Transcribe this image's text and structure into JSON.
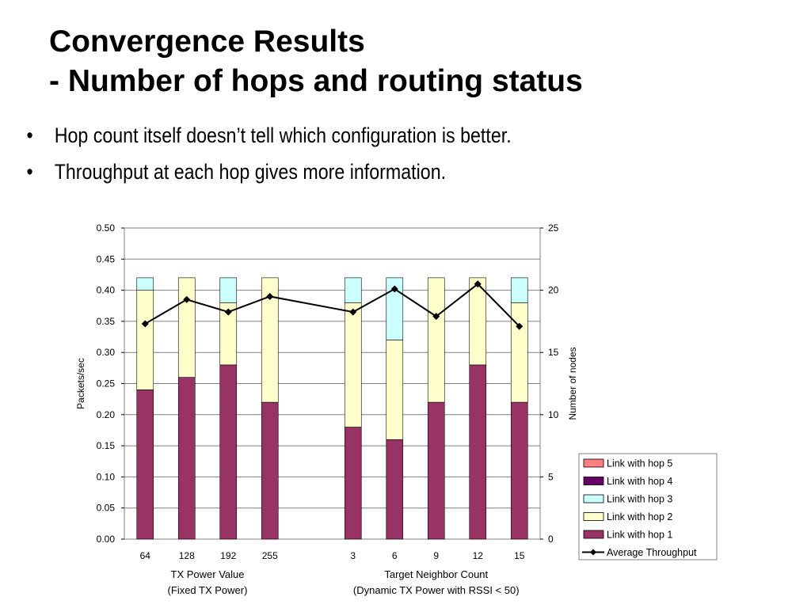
{
  "slide": {
    "title_line1": "Convergence Results",
    "title_line2": "- Number of hops and routing status",
    "bullets": [
      "Hop count itself doesn’t tell which configuration is better.",
      "Throughput at each hop gives more information."
    ],
    "bullet_glyph": "•"
  },
  "chart_data": {
    "type": "bar",
    "stacked": true,
    "title": "",
    "ylabel": "Packets/sec",
    "y2label": "Number of nodes",
    "ylim": [
      0,
      0.5
    ],
    "y_ticks": [
      "0.00",
      "0.05",
      "0.10",
      "0.15",
      "0.20",
      "0.25",
      "0.30",
      "0.35",
      "0.40",
      "0.45",
      "0.50"
    ],
    "y2lim": [
      0,
      25
    ],
    "y2_ticks": [
      "0",
      "5",
      "10",
      "15",
      "20",
      "25"
    ],
    "grid": true,
    "legend_position": "right-bottom",
    "groups": [
      {
        "label_line1": "TX Power Value",
        "label_line2": "(Fixed TX Power)",
        "categories": [
          "64",
          "128",
          "192",
          "255"
        ]
      },
      {
        "label_line1": "Target Neighbor Count",
        "label_line2": "(Dynamic TX Power with RSSI < 50)",
        "categories": [
          "3",
          "6",
          "9",
          "12",
          "15"
        ]
      }
    ],
    "series": [
      {
        "name": "Link with hop 1",
        "axis": "right",
        "color": "#993366",
        "values": [
          12,
          13,
          14,
          11,
          9,
          8,
          11,
          14,
          11
        ]
      },
      {
        "name": "Link with hop 2",
        "axis": "right",
        "color": "#FFFFCC",
        "values": [
          8,
          8,
          5,
          10,
          10,
          8,
          10,
          7,
          8
        ]
      },
      {
        "name": "Link with hop 3",
        "axis": "right",
        "color": "#CCFFFF",
        "values": [
          1,
          0,
          2,
          0,
          2,
          5,
          0,
          0,
          2
        ]
      },
      {
        "name": "Link with hop 4",
        "axis": "right",
        "color": "#660066",
        "values": [
          0,
          0,
          0,
          0,
          0,
          0,
          0,
          0,
          0
        ]
      },
      {
        "name": "Link with hop 5",
        "axis": "right",
        "color": "#FF8080",
        "values": [
          0,
          0,
          0,
          0,
          0,
          0,
          0,
          0,
          0
        ]
      }
    ],
    "line_series": {
      "name": "Average Throughput",
      "axis": "left",
      "color": "#000000",
      "values": [
        0.346,
        0.385,
        0.365,
        0.39,
        0.365,
        0.402,
        0.358,
        0.41,
        0.342
      ]
    },
    "legend": [
      "Link with hop 5",
      "Link with hop 4",
      "Link with hop 3",
      "Link with hop 2",
      "Link with hop 1",
      "Average Throughput"
    ]
  }
}
